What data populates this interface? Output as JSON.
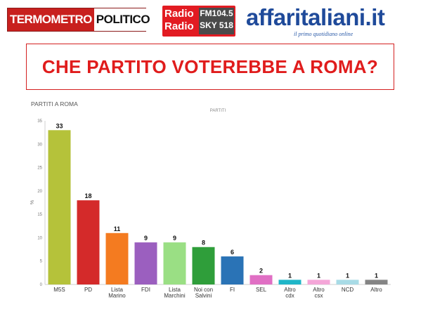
{
  "header": {
    "logo_termometro": {
      "part1": "TERMOMETRO",
      "part2": "POLITICO"
    },
    "logo_radio": {
      "line1": "Radio",
      "line2": "Radio",
      "freq1": "FM104.5",
      "freq2": "SKY 518"
    },
    "logo_affaritaliani": {
      "name": "affaritaliani.it",
      "tagline": "il primo quotidiano online"
    }
  },
  "title": "CHE PARTITO VOTEREBBE A ROMA?",
  "colors": {
    "title_red": "#e01c1c",
    "affari_blue": "#1f4a9a",
    "radio_red": "#e21b22"
  },
  "chart_data": {
    "type": "bar",
    "title": "PARTITI A ROMA",
    "series_label": "PARTITI",
    "ylabel": "%",
    "xlabel": "",
    "ylim": [
      0,
      35
    ],
    "yticks": [
      0,
      5,
      10,
      15,
      20,
      25,
      30,
      35
    ],
    "grid": false,
    "legend": "none",
    "categories": [
      [
        "M5S"
      ],
      [
        "PD"
      ],
      [
        "Lista",
        "Marino"
      ],
      [
        "FDI"
      ],
      [
        "Lista",
        "Marchini"
      ],
      [
        "Noi con",
        "Salvini"
      ],
      [
        "FI"
      ],
      [
        "SEL"
      ],
      [
        "Altro",
        "cdx"
      ],
      [
        "Altro",
        "csx"
      ],
      [
        "NCD"
      ],
      [
        "Altro"
      ]
    ],
    "values": [
      33,
      18,
      11,
      9,
      9,
      8,
      6,
      2,
      1,
      1,
      1,
      1
    ],
    "bar_colors": [
      "#b5c23a",
      "#d42a2a",
      "#f47b20",
      "#9b5fbf",
      "#9adf84",
      "#2f9e3a",
      "#2a73b6",
      "#e06fc4",
      "#1fb6c8",
      "#f4a6d8",
      "#a8dbe6",
      "#848484"
    ]
  }
}
